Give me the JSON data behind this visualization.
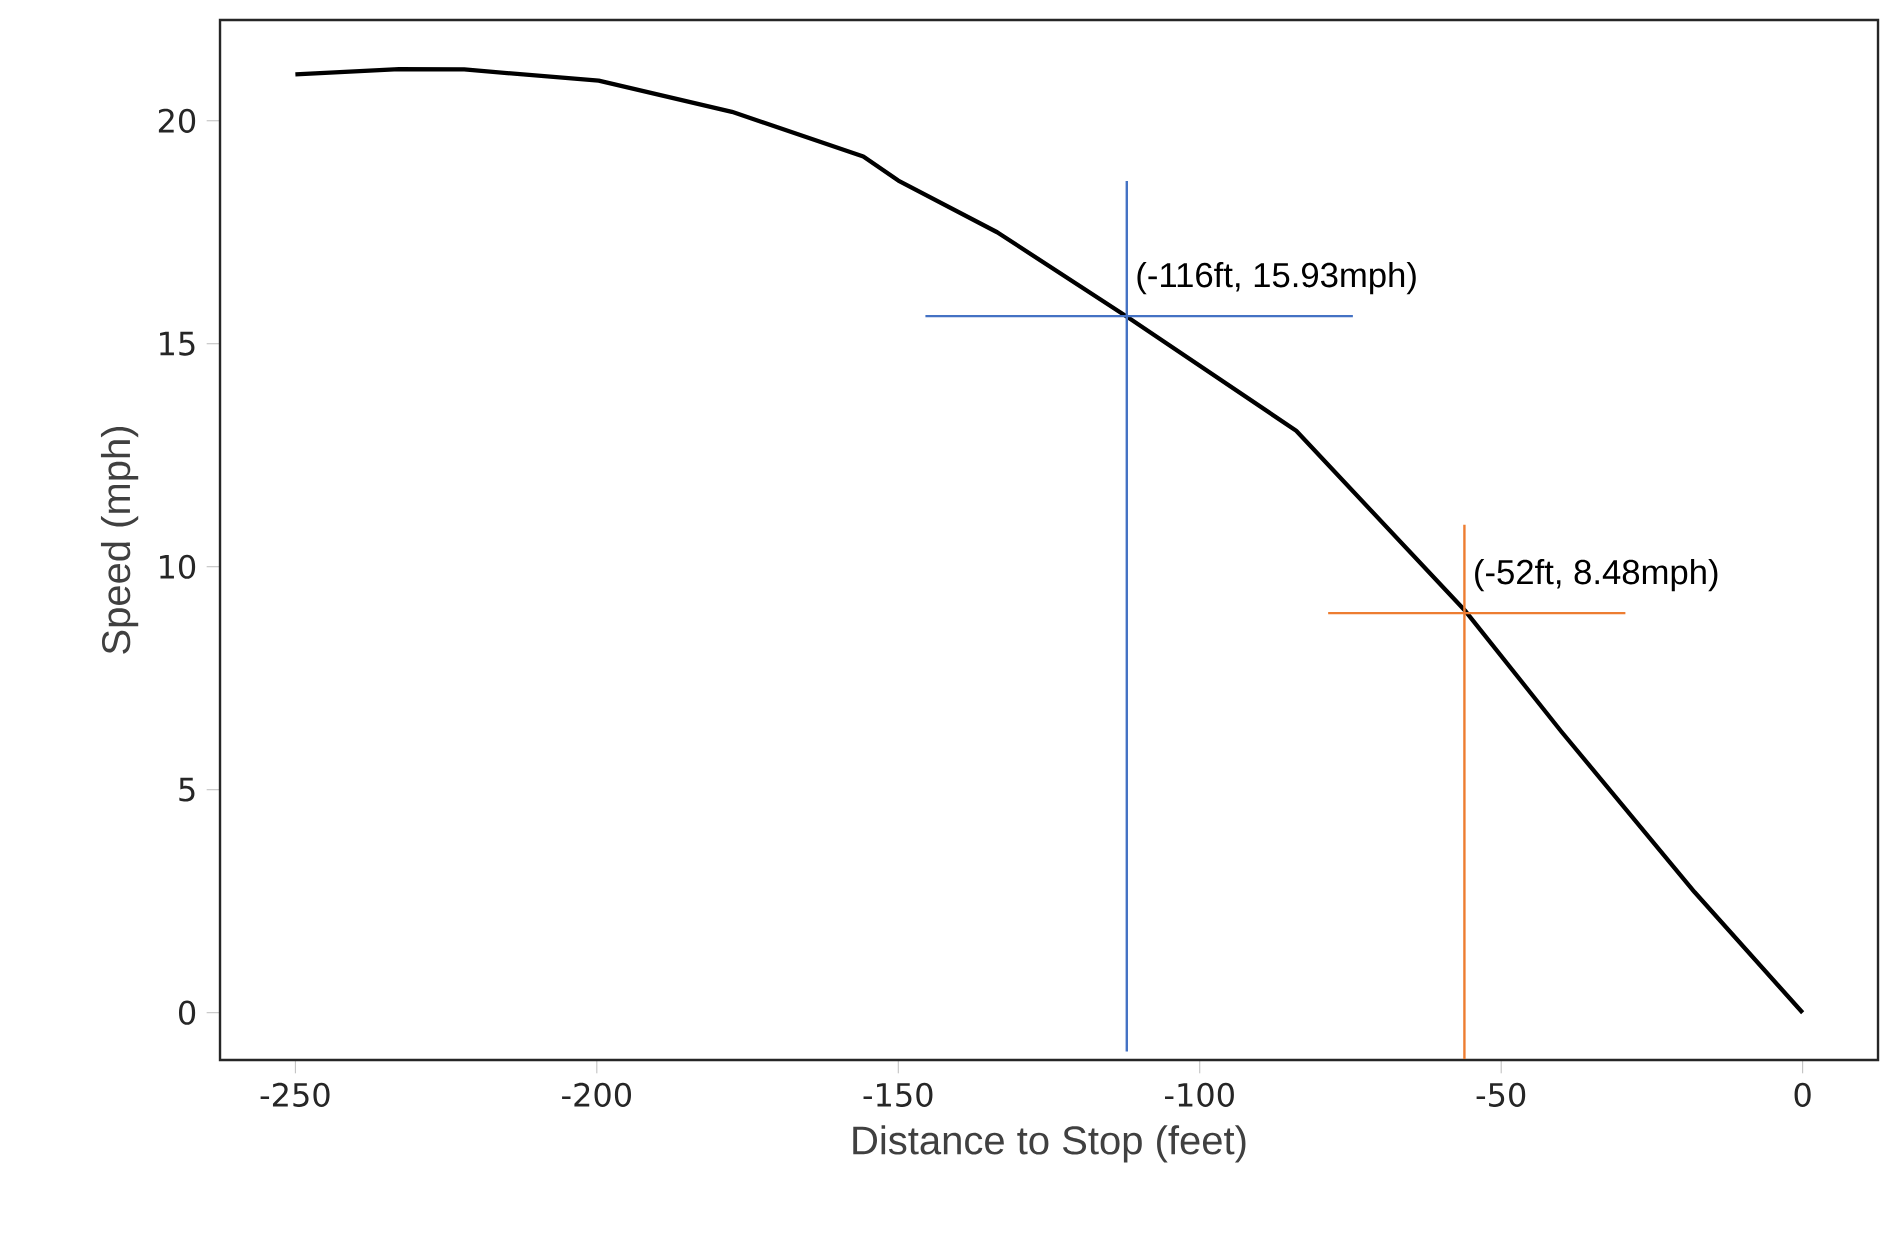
{
  "chart_data": {
    "type": "line",
    "xlabel": "Distance to Stop (feet)",
    "ylabel": "Speed (mph)",
    "xlim": [
      -262.5,
      12.5
    ],
    "ylim": [
      -1.06,
      22.26
    ],
    "xticks": [
      -250,
      -200,
      -150,
      -100,
      -50,
      0
    ],
    "yticks": [
      0,
      5,
      10,
      15,
      20
    ],
    "series": [
      {
        "color": "#000000",
        "x": [
          -250,
          -232.8,
          -222,
          -199.7,
          -177.6,
          -155.8,
          -150,
          -133.6,
          -112,
          -84,
          -55.9,
          -40,
          -17.9,
          0
        ],
        "values": [
          21.04,
          21.16,
          21.15,
          20.9,
          20.2,
          19.2,
          18.66,
          17.5,
          15.6,
          13.05,
          9.0,
          6.3,
          2.7,
          0
        ]
      },
      {
        "color": "#4472c4",
        "x": [
          -112.1,
          -112.1
        ],
        "values": [
          18.65,
          -0.87
        ]
      },
      {
        "color": "#4472c4",
        "x": [
          -145.5,
          -74.6
        ],
        "values": [
          15.62,
          15.62
        ]
      },
      {
        "color": "#ed7d31",
        "x": [
          -56.1,
          -56.1
        ],
        "values": [
          10.94,
          -1.04
        ]
      },
      {
        "color": "#ed7d31",
        "x": [
          -78.7,
          -29.4
        ],
        "values": [
          8.96,
          8.96
        ]
      }
    ],
    "annotations": [
      {
        "text": "(-116ft, 15.93mph)",
        "x": -112.1,
        "y": 15.62
      },
      {
        "text": "(-52ft, 8.48mph)",
        "x": -56.1,
        "y": 8.96
      }
    ]
  }
}
